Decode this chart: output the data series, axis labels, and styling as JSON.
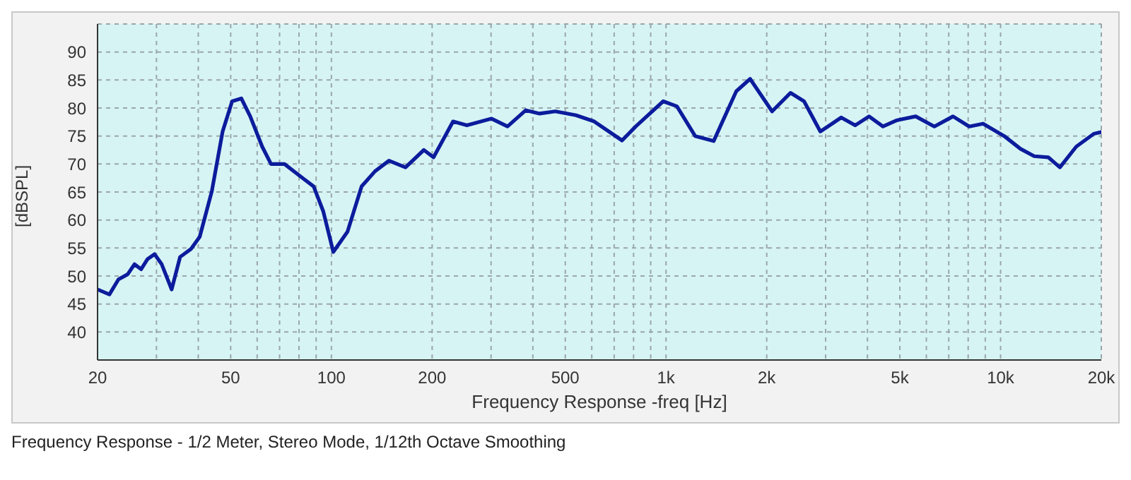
{
  "chart_data": {
    "type": "line",
    "xlabel": "Frequency Response -freq [Hz]",
    "ylabel": "[dBSPL]",
    "annotations": [
      "Frequency Response - 1/2 Meter, Stereo Mode, 1/12th Octave Smoothing"
    ],
    "log": "x",
    "grid": true,
    "marker": "none",
    "line_style": "solid",
    "xlim": [
      20,
      20000
    ],
    "ylim": [
      35,
      95
    ],
    "xticks": [
      20,
      {
        "value": 30,
        "label": null
      },
      {
        "value": 40,
        "label": null
      },
      50,
      {
        "value": 60,
        "label": null
      },
      {
        "value": 70,
        "label": null
      },
      {
        "value": 80,
        "label": null
      },
      {
        "value": 90,
        "label": null
      },
      100,
      200,
      {
        "value": 300,
        "label": null
      },
      {
        "value": 400,
        "label": null
      },
      500,
      {
        "value": 600,
        "label": null
      },
      {
        "value": 700,
        "label": null
      },
      {
        "value": 800,
        "label": null
      },
      {
        "value": 900,
        "label": null
      },
      {
        "value": 1000,
        "label": "1k"
      },
      {
        "value": 2000,
        "label": "2k"
      },
      {
        "value": 3000,
        "label": null
      },
      {
        "value": 4000,
        "label": null
      },
      {
        "value": 5000,
        "label": "5k"
      },
      {
        "value": 6000,
        "label": null
      },
      {
        "value": 7000,
        "label": null
      },
      {
        "value": 8000,
        "label": null
      },
      {
        "value": 9000,
        "label": null
      },
      {
        "value": 10000,
        "label": "10k"
      },
      {
        "value": 20000,
        "label": "20k"
      }
    ],
    "yticks": [
      40,
      45,
      50,
      55,
      60,
      65,
      70,
      75,
      80,
      85,
      90
    ],
    "series": [
      {
        "color": "#0c1c9c",
        "x": [
          20,
          21.7,
          23.1,
          24.6,
          25.8,
          27,
          28.2,
          29.6,
          31.1,
          33.3,
          35.3,
          38,
          40.4,
          43.9,
          47.3,
          50.5,
          53.8,
          57.2,
          62.1,
          66,
          72.4,
          82.8,
          88.5,
          94.6,
          101.3,
          111.7,
          123.1,
          135,
          148.6,
          166.5,
          188.9,
          202,
          231,
          254,
          301,
          336,
          381,
          419,
          467,
          538,
          610,
          739,
          812,
          981,
          1078,
          1222,
          1388,
          1622,
          1784,
          2075,
          2355,
          2586,
          2892,
          3340,
          3675,
          4044,
          4450,
          4897,
          5575,
          6339,
          7208,
          8060,
          8864,
          10245,
          11470,
          12600,
          13880,
          15040,
          16830,
          19000,
          20000
        ],
        "values": [
          47.6,
          46.7,
          49.4,
          50.3,
          52.1,
          51.2,
          53,
          53.9,
          52.1,
          47.6,
          53.4,
          54.8,
          57,
          65.1,
          75.8,
          81.2,
          81.7,
          78.5,
          73.1,
          70,
          70,
          67.3,
          66,
          61.5,
          54.3,
          57.9,
          66,
          68.7,
          70.6,
          69.4,
          72.5,
          71.2,
          77.6,
          76.9,
          78.1,
          76.7,
          79.6,
          79,
          79.4,
          78.7,
          77.6,
          74.2,
          76.7,
          81.2,
          80.3,
          75,
          74.1,
          83,
          85.2,
          79.4,
          82.7,
          81.2,
          75.8,
          78.3,
          76.9,
          78.5,
          76.7,
          77.8,
          78.5,
          76.7,
          78.5,
          76.7,
          77.2,
          75,
          72.7,
          71.4,
          71.2,
          69.4,
          73.1,
          75.4,
          75.7
        ]
      }
    ]
  }
}
